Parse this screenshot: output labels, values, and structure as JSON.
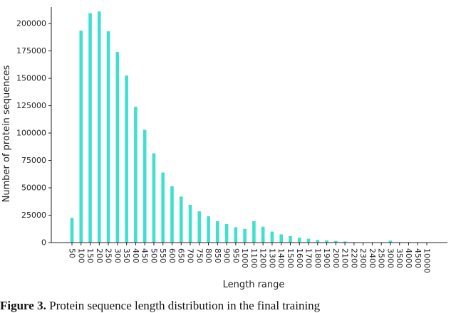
{
  "chart_data": {
    "type": "bar",
    "xlabel": "Length range",
    "ylabel": "Number of protein sequences",
    "ylim": [
      0,
      215000
    ],
    "yticks": [
      0,
      25000,
      50000,
      75000,
      100000,
      125000,
      150000,
      175000,
      200000
    ],
    "ytick_labels": [
      "0",
      "25000",
      "50000",
      "75000",
      "100000",
      "125000",
      "150000",
      "175000",
      "200000"
    ],
    "bar_color": "#40e0d0",
    "grid": false,
    "categories": [
      "50",
      "100",
      "150",
      "200",
      "250",
      "300",
      "350",
      "400",
      "450",
      "500",
      "550",
      "600",
      "650",
      "700",
      "750",
      "800",
      "850",
      "900",
      "950",
      "1000",
      "1100",
      "1200",
      "1300",
      "1400",
      "1500",
      "1600",
      "1700",
      "1800",
      "1900",
      "2000",
      "2100",
      "2200",
      "2300",
      "2400",
      "2500",
      "3000",
      "3500",
      "4000",
      "4500",
      "10000"
    ],
    "values": [
      22500,
      193500,
      209500,
      211000,
      193000,
      174000,
      152500,
      124000,
      103000,
      81500,
      64000,
      51500,
      42000,
      34500,
      28500,
      24000,
      19500,
      17000,
      14000,
      12500,
      19500,
      14500,
      10000,
      7500,
      6000,
      4500,
      3500,
      2500,
      2000,
      1500,
      1000,
      300,
      300,
      300,
      300,
      1800,
      300,
      300,
      300,
      300
    ]
  },
  "caption": {
    "label": "Figure 3.",
    "text": "Protein sequence length distribution in the final training"
  }
}
